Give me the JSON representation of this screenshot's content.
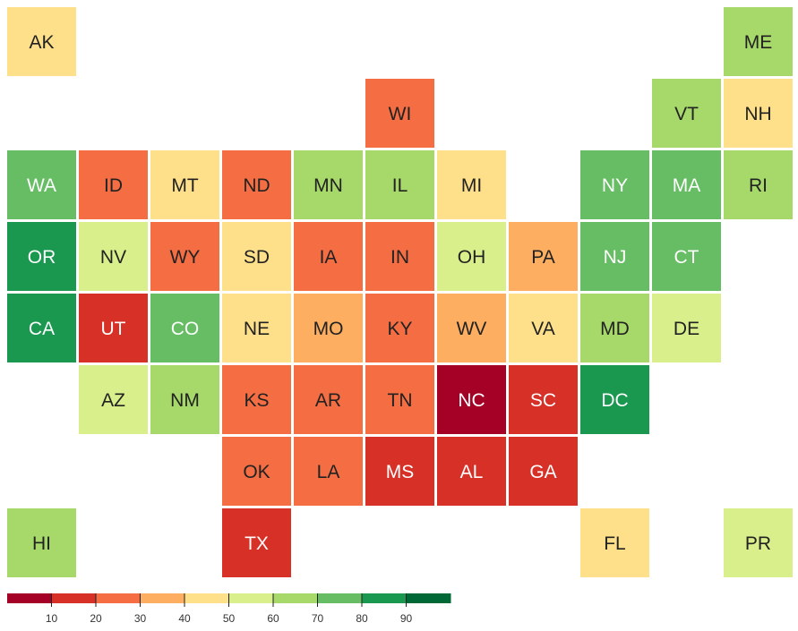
{
  "chart_data": {
    "type": "tilemap",
    "tiles": [
      {
        "label": "AK",
        "value": 45
      },
      {
        "label": "ME",
        "value": 65
      },
      {
        "label": "WI",
        "value": 25
      },
      {
        "label": "VT",
        "value": 65
      },
      {
        "label": "NH",
        "value": 45
      },
      {
        "label": "WA",
        "value": 75
      },
      {
        "label": "ID",
        "value": 25
      },
      {
        "label": "MT",
        "value": 45
      },
      {
        "label": "ND",
        "value": 25
      },
      {
        "label": "MN",
        "value": 65
      },
      {
        "label": "IL",
        "value": 65
      },
      {
        "label": "MI",
        "value": 45
      },
      {
        "label": "NY",
        "value": 75
      },
      {
        "label": "MA",
        "value": 75
      },
      {
        "label": "RI",
        "value": 65
      },
      {
        "label": "OR",
        "value": 85
      },
      {
        "label": "NV",
        "value": 55
      },
      {
        "label": "WY",
        "value": 25
      },
      {
        "label": "SD",
        "value": 45
      },
      {
        "label": "IA",
        "value": 25
      },
      {
        "label": "IN",
        "value": 25
      },
      {
        "label": "OH",
        "value": 55
      },
      {
        "label": "PA",
        "value": 35
      },
      {
        "label": "NJ",
        "value": 75
      },
      {
        "label": "CT",
        "value": 75
      },
      {
        "label": "CA",
        "value": 85
      },
      {
        "label": "UT",
        "value": 15
      },
      {
        "label": "CO",
        "value": 75
      },
      {
        "label": "NE",
        "value": 45
      },
      {
        "label": "MO",
        "value": 35
      },
      {
        "label": "KY",
        "value": 25
      },
      {
        "label": "WV",
        "value": 35
      },
      {
        "label": "VA",
        "value": 45
      },
      {
        "label": "MD",
        "value": 65
      },
      {
        "label": "DE",
        "value": 55
      },
      {
        "label": "AZ",
        "value": 55
      },
      {
        "label": "NM",
        "value": 65
      },
      {
        "label": "KS",
        "value": 25
      },
      {
        "label": "AR",
        "value": 25
      },
      {
        "label": "TN",
        "value": 25
      },
      {
        "label": "NC",
        "value": 5
      },
      {
        "label": "SC",
        "value": 15
      },
      {
        "label": "DC",
        "value": 85
      },
      {
        "label": "OK",
        "value": 25
      },
      {
        "label": "LA",
        "value": 25
      },
      {
        "label": "MS",
        "value": 15
      },
      {
        "label": "AL",
        "value": 15
      },
      {
        "label": "GA",
        "value": 15
      },
      {
        "label": "HI",
        "value": 65
      },
      {
        "label": "TX",
        "value": 15
      },
      {
        "label": "FL",
        "value": 45
      },
      {
        "label": "PR",
        "value": 55
      }
    ],
    "colorscale": {
      "lim": [
        0,
        100
      ],
      "ticks": [
        10,
        20,
        30,
        40,
        50,
        60,
        70,
        80,
        90
      ],
      "colors": [
        "#a50026",
        "#d73027",
        "#f46d43",
        "#fdae61",
        "#fee08b",
        "#d9ef8b",
        "#a6d96a",
        "#66bd63",
        "#1a9850",
        "#006837"
      ]
    }
  }
}
